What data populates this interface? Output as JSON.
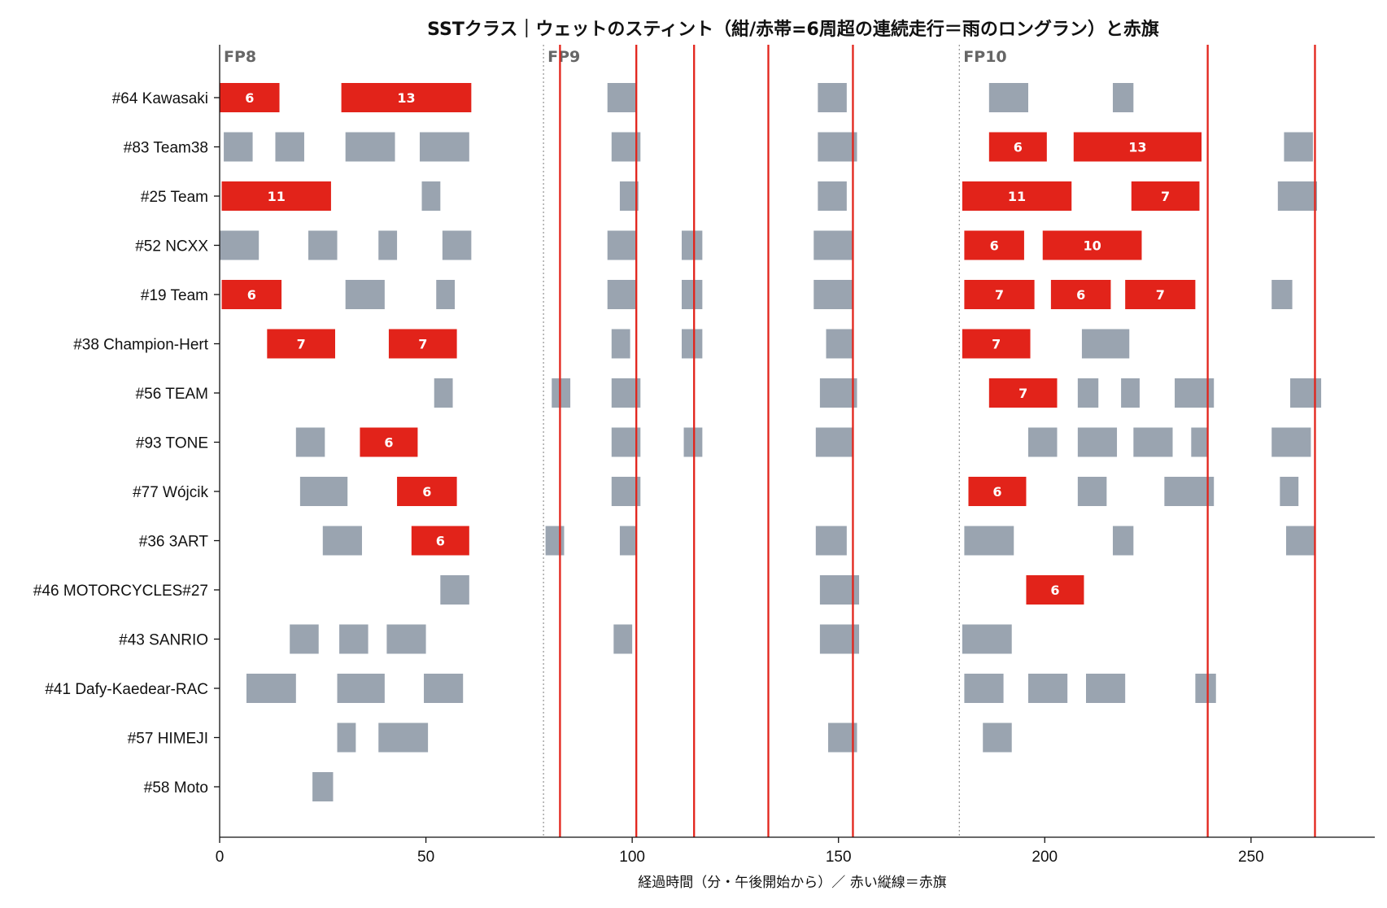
{
  "chart_data": {
    "type": "gantt",
    "title": "SSTクラス｜ウェットのスティント（紺/赤帯=6周超の連続走行＝雨のロングラン）と赤旗",
    "xlabel": "経過時間（分・午後開始から）／ 赤い縦線＝赤旗",
    "xlim": [
      0,
      280
    ],
    "xticks": [
      0,
      50,
      100,
      150,
      200,
      250
    ],
    "colors": {
      "normal": "#9aa4b0",
      "long_run": "#e2231a",
      "red_flag": "#e2231a",
      "session_line": "#999999"
    },
    "sessions": [
      {
        "name": "FP8",
        "start": 0
      },
      {
        "name": "FP9",
        "start": 78.5
      },
      {
        "name": "FP10",
        "start": 179.3
      }
    ],
    "red_flags": [
      82.5,
      101,
      115,
      133,
      153.5,
      239.5,
      265.5
    ],
    "riders": [
      {
        "name": "#64 Kawasaki",
        "stints": [
          {
            "start": 0,
            "end": 14.5,
            "laps": 6
          },
          {
            "start": 29.5,
            "end": 61,
            "laps": 13
          },
          {
            "start": 94,
            "end": 101
          },
          {
            "start": 145,
            "end": 152
          },
          {
            "start": 186.5,
            "end": 196
          },
          {
            "start": 216.5,
            "end": 221.5
          }
        ]
      },
      {
        "name": "#83 Team38",
        "stints": [
          {
            "start": 1,
            "end": 8
          },
          {
            "start": 13.5,
            "end": 20.5
          },
          {
            "start": 30.5,
            "end": 42.5
          },
          {
            "start": 48.5,
            "end": 60.5
          },
          {
            "start": 95,
            "end": 102
          },
          {
            "start": 145,
            "end": 154.5
          },
          {
            "start": 186.5,
            "end": 200.5,
            "laps": 6
          },
          {
            "start": 207,
            "end": 238,
            "laps": 13
          },
          {
            "start": 258,
            "end": 265
          }
        ]
      },
      {
        "name": "#25 Team",
        "stints": [
          {
            "start": 0.5,
            "end": 27,
            "laps": 11
          },
          {
            "start": 49,
            "end": 53.5
          },
          {
            "start": 97,
            "end": 101.5
          },
          {
            "start": 145,
            "end": 152
          },
          {
            "start": 180,
            "end": 206.5,
            "laps": 11
          },
          {
            "start": 221,
            "end": 237.5,
            "laps": 7
          },
          {
            "start": 256.5,
            "end": 266
          }
        ]
      },
      {
        "name": "#52 NCXX",
        "stints": [
          {
            "start": 0,
            "end": 9.5
          },
          {
            "start": 21.5,
            "end": 28.5
          },
          {
            "start": 38.5,
            "end": 43
          },
          {
            "start": 54,
            "end": 61
          },
          {
            "start": 94,
            "end": 101
          },
          {
            "start": 112,
            "end": 117
          },
          {
            "start": 144,
            "end": 153.5
          },
          {
            "start": 180.5,
            "end": 195,
            "laps": 6
          },
          {
            "start": 199.5,
            "end": 223.5,
            "laps": 10
          }
        ]
      },
      {
        "name": "#19 Team",
        "stints": [
          {
            "start": 0.5,
            "end": 15,
            "laps": 6
          },
          {
            "start": 30.5,
            "end": 40
          },
          {
            "start": 52.5,
            "end": 57
          },
          {
            "start": 94,
            "end": 101
          },
          {
            "start": 112,
            "end": 117
          },
          {
            "start": 144,
            "end": 153.5
          },
          {
            "start": 180.5,
            "end": 197.5,
            "laps": 7
          },
          {
            "start": 201.5,
            "end": 216,
            "laps": 6
          },
          {
            "start": 219.5,
            "end": 236.5,
            "laps": 7
          },
          {
            "start": 255,
            "end": 260
          }
        ]
      },
      {
        "name": "#38 Champion-Hert",
        "stints": [
          {
            "start": 11.5,
            "end": 28,
            "laps": 7
          },
          {
            "start": 41,
            "end": 57.5,
            "laps": 7
          },
          {
            "start": 95,
            "end": 99.5
          },
          {
            "start": 112,
            "end": 117
          },
          {
            "start": 147,
            "end": 153.5
          },
          {
            "start": 180,
            "end": 196.5,
            "laps": 7
          },
          {
            "start": 209,
            "end": 220.5
          }
        ]
      },
      {
        "name": "#56 TEAM",
        "stints": [
          {
            "start": 52,
            "end": 56.5
          },
          {
            "start": 80.5,
            "end": 85
          },
          {
            "start": 95,
            "end": 102
          },
          {
            "start": 145.5,
            "end": 154.5
          },
          {
            "start": 186.5,
            "end": 203,
            "laps": 7
          },
          {
            "start": 208,
            "end": 213
          },
          {
            "start": 218.5,
            "end": 223
          },
          {
            "start": 231.5,
            "end": 241
          },
          {
            "start": 259.5,
            "end": 267
          }
        ]
      },
      {
        "name": "#93 TONE",
        "stints": [
          {
            "start": 18.5,
            "end": 25.5
          },
          {
            "start": 34,
            "end": 48,
            "laps": 6
          },
          {
            "start": 95,
            "end": 102
          },
          {
            "start": 112.5,
            "end": 117
          },
          {
            "start": 144.5,
            "end": 153.5
          },
          {
            "start": 196,
            "end": 203
          },
          {
            "start": 208,
            "end": 217.5
          },
          {
            "start": 221.5,
            "end": 231
          },
          {
            "start": 235.5,
            "end": 239.5
          },
          {
            "start": 255,
            "end": 264.5
          }
        ]
      },
      {
        "name": "#77 Wójcik",
        "stints": [
          {
            "start": 19.5,
            "end": 31
          },
          {
            "start": 43,
            "end": 57.5,
            "laps": 6
          },
          {
            "start": 95,
            "end": 102
          },
          {
            "start": 181.5,
            "end": 195.5,
            "laps": 6
          },
          {
            "start": 208,
            "end": 215
          },
          {
            "start": 229,
            "end": 241
          },
          {
            "start": 257,
            "end": 261.5
          }
        ]
      },
      {
        "name": "#36 3ART",
        "stints": [
          {
            "start": 25,
            "end": 34.5
          },
          {
            "start": 46.5,
            "end": 60.5,
            "laps": 6
          },
          {
            "start": 79,
            "end": 83.5
          },
          {
            "start": 97,
            "end": 101
          },
          {
            "start": 144.5,
            "end": 152
          },
          {
            "start": 180.5,
            "end": 192.5
          },
          {
            "start": 216.5,
            "end": 221.5
          },
          {
            "start": 258.5,
            "end": 265.5
          }
        ]
      },
      {
        "name": "#46 MOTORCYCLES#27",
        "stints": [
          {
            "start": 53.5,
            "end": 60.5
          },
          {
            "start": 145.5,
            "end": 155
          },
          {
            "start": 195.5,
            "end": 209.5,
            "laps": 6
          }
        ]
      },
      {
        "name": "#43 SANRIO",
        "stints": [
          {
            "start": 17,
            "end": 24
          },
          {
            "start": 29,
            "end": 36
          },
          {
            "start": 40.5,
            "end": 50
          },
          {
            "start": 95.5,
            "end": 100
          },
          {
            "start": 145.5,
            "end": 155
          },
          {
            "start": 180,
            "end": 192
          }
        ]
      },
      {
        "name": "#41 Dafy-Kaedear-RAC",
        "stints": [
          {
            "start": 6.5,
            "end": 18.5
          },
          {
            "start": 28.5,
            "end": 40
          },
          {
            "start": 49.5,
            "end": 59
          },
          {
            "start": 180.5,
            "end": 190
          },
          {
            "start": 196,
            "end": 205.5
          },
          {
            "start": 210,
            "end": 219.5
          },
          {
            "start": 236.5,
            "end": 241.5
          }
        ]
      },
      {
        "name": "#57 HIMEJI",
        "stints": [
          {
            "start": 28.5,
            "end": 33
          },
          {
            "start": 38.5,
            "end": 50.5
          },
          {
            "start": 147.5,
            "end": 154.5
          },
          {
            "start": 185,
            "end": 192
          }
        ]
      },
      {
        "name": "#58 Moto",
        "stints": [
          {
            "start": 22.5,
            "end": 27.5
          }
        ]
      }
    ]
  }
}
